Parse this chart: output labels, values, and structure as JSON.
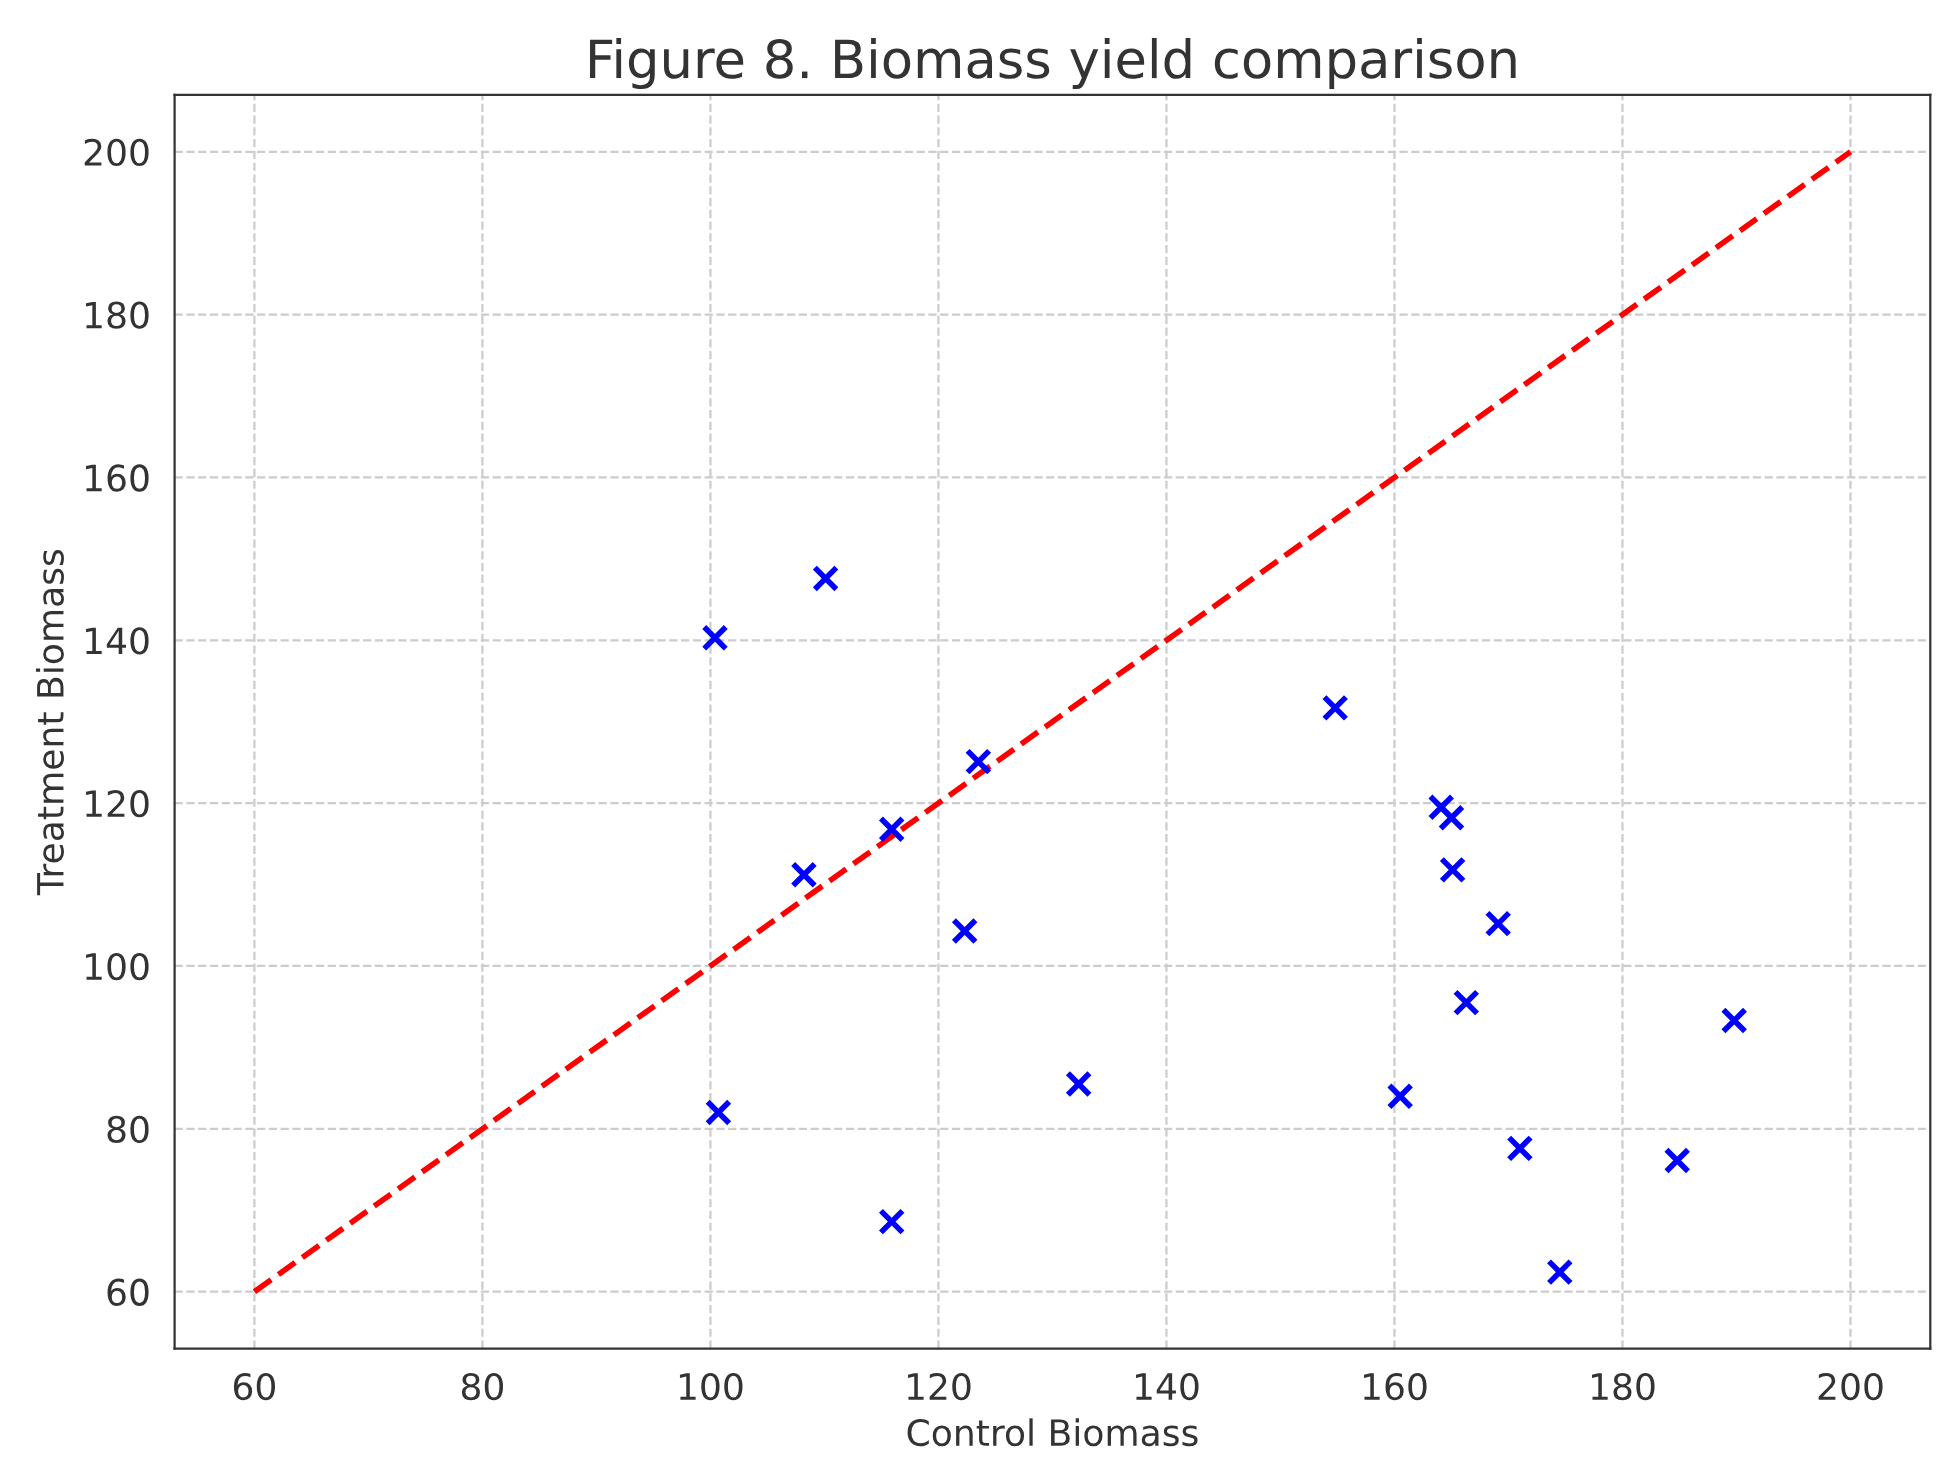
{
  "chart_data": {
    "type": "scatter",
    "title": "Figure 8. Biomass yield comparison",
    "xlabel": "Control Biomass",
    "ylabel": "Treatment Biomass",
    "xlim": [
      53,
      207
    ],
    "ylim": [
      53,
      207
    ],
    "xticks": [
      60,
      80,
      100,
      120,
      140,
      160,
      180,
      200
    ],
    "yticks": [
      60,
      80,
      100,
      120,
      140,
      160,
      180,
      200
    ],
    "grid": true,
    "series": [
      {
        "color": "#0000ff",
        "marker": "cross",
        "x": [
          100.4,
          110.1,
          108.2,
          115.9,
          123.5,
          122.3,
          100.7,
          115.9,
          132.3,
          154.8,
          164.1,
          165.0,
          165.1,
          169.1,
          166.3,
          160.5,
          171.0,
          174.5,
          184.8,
          189.8
        ],
        "values": [
          140.3,
          147.6,
          111.2,
          116.8,
          125.1,
          104.3,
          82.0,
          68.6,
          85.5,
          131.7,
          119.5,
          118.2,
          111.8,
          105.2,
          95.5,
          84.0,
          77.6,
          62.4,
          76.1,
          93.3
        ]
      },
      {
        "type": "line",
        "color": "#ff0000",
        "line_style": "dashed",
        "marker": "none",
        "x": [
          60,
          200
        ],
        "values": [
          60,
          200
        ]
      }
    ]
  }
}
